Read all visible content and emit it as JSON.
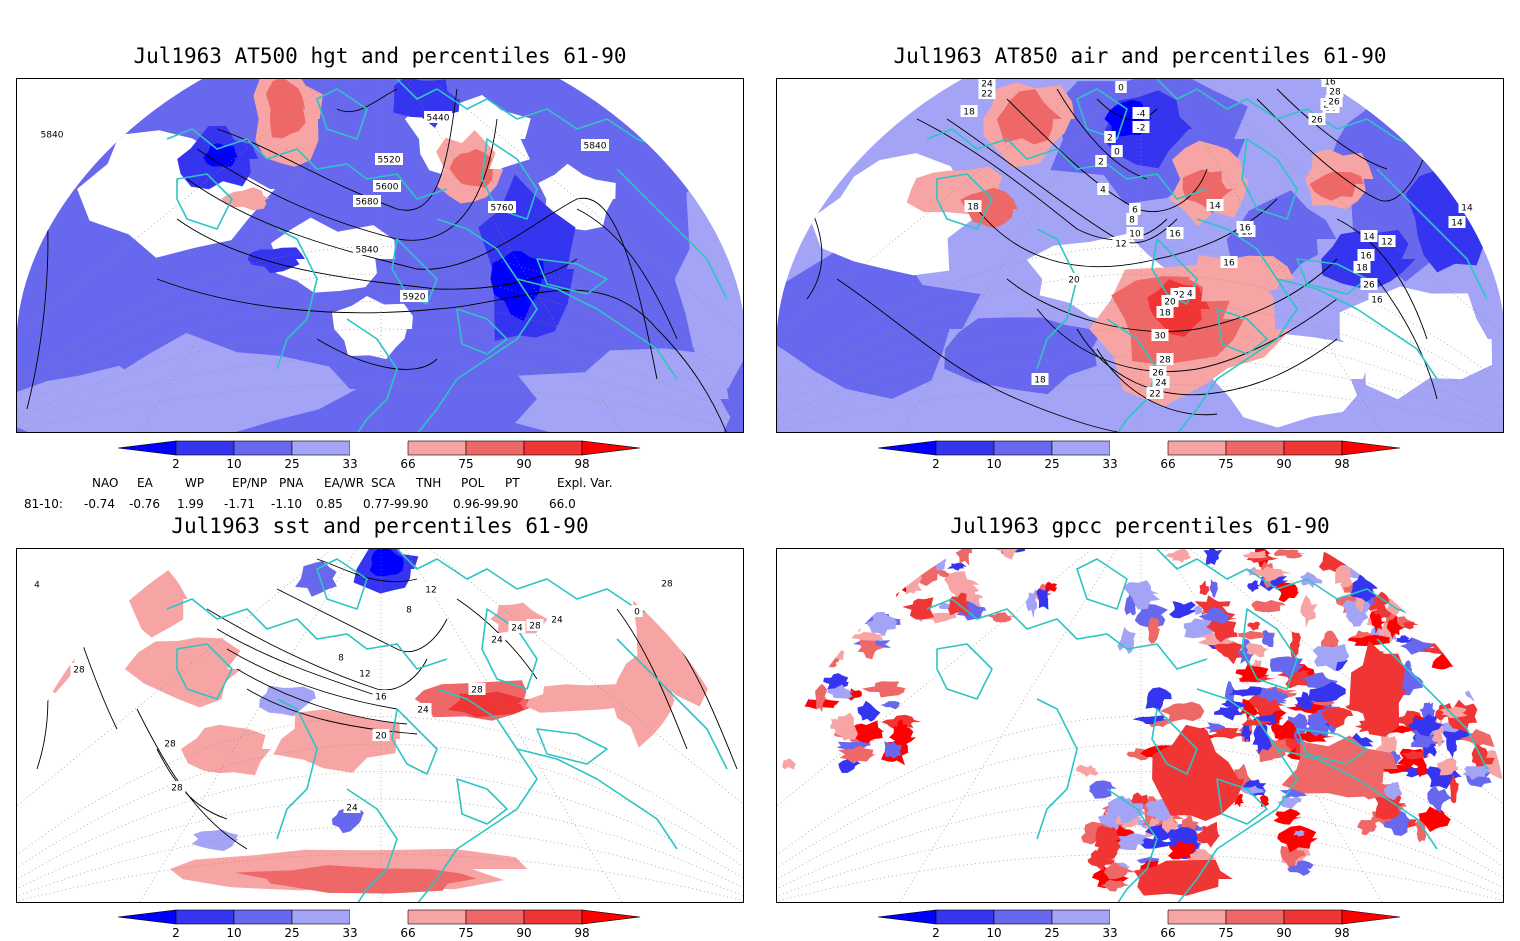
{
  "panels": [
    {
      "id": "p1",
      "title": "Jul1963 AT500 hgt and percentiles 61-90",
      "contour_labels": [
        "5440",
        "5520",
        "5600",
        "5680",
        "5760",
        "5840",
        "5840",
        "5840",
        "5920"
      ]
    },
    {
      "id": "p2",
      "title": "Jul1963 AT850 air and percentiles 61-90",
      "contour_labels": [
        "24",
        "22",
        "18",
        "0",
        "-4",
        "-2",
        "2",
        "0",
        "2",
        "4",
        "6",
        "8",
        "10",
        "12",
        "14",
        "16",
        "18",
        "16",
        "16",
        "12",
        "14",
        "16",
        "18",
        "26",
        "24",
        "22",
        "20",
        "18",
        "30",
        "28",
        "26",
        "24",
        "22",
        "20",
        "18",
        "16",
        "14",
        "14",
        "18",
        "16",
        "30",
        "26",
        "24",
        "28",
        "26"
      ]
    },
    {
      "id": "p3",
      "title": "Jul1963 sst and percentiles 61-90",
      "contour_labels": [
        "28",
        "28",
        "8",
        "12",
        "16",
        "20",
        "24",
        "24",
        "24",
        "24",
        "24",
        "28",
        "28",
        "28",
        "28",
        "0",
        "4",
        "8",
        "12"
      ]
    },
    {
      "id": "p4",
      "title": "Jul1963 gpcc percentiles 61-90",
      "contour_labels": []
    }
  ],
  "colorbar": {
    "ticks": [
      "2",
      "10",
      "25",
      "33",
      "66",
      "75",
      "90",
      "98"
    ],
    "colors": {
      "below2": "#0000ff",
      "b2_10": "#3535f0",
      "b10_25": "#6868ef",
      "b25_33": "#a4a4f7",
      "b33_66": "#ffffff",
      "b66_75": "#f7a4a4",
      "b75_90": "#ef6868",
      "b90_98": "#f03535",
      "above98": "#ff0000"
    }
  },
  "indices": {
    "headers": [
      "NAO",
      "EA",
      "WP",
      "EP/NP",
      "PNA",
      "EA/WR",
      "SCA",
      "TNH",
      "POL",
      "PT",
      "Expl. Var."
    ],
    "row_label": "81-10:",
    "values": [
      "-0.74",
      "-0.76",
      "1.99",
      "-1.71",
      "-1.10",
      "0.85",
      "0.77-99.90",
      "",
      "0.96-99.90",
      "",
      "66.0"
    ]
  },
  "colors": {
    "coast": "#2ec4c4",
    "contour": "#000000",
    "grid": "#888888"
  }
}
